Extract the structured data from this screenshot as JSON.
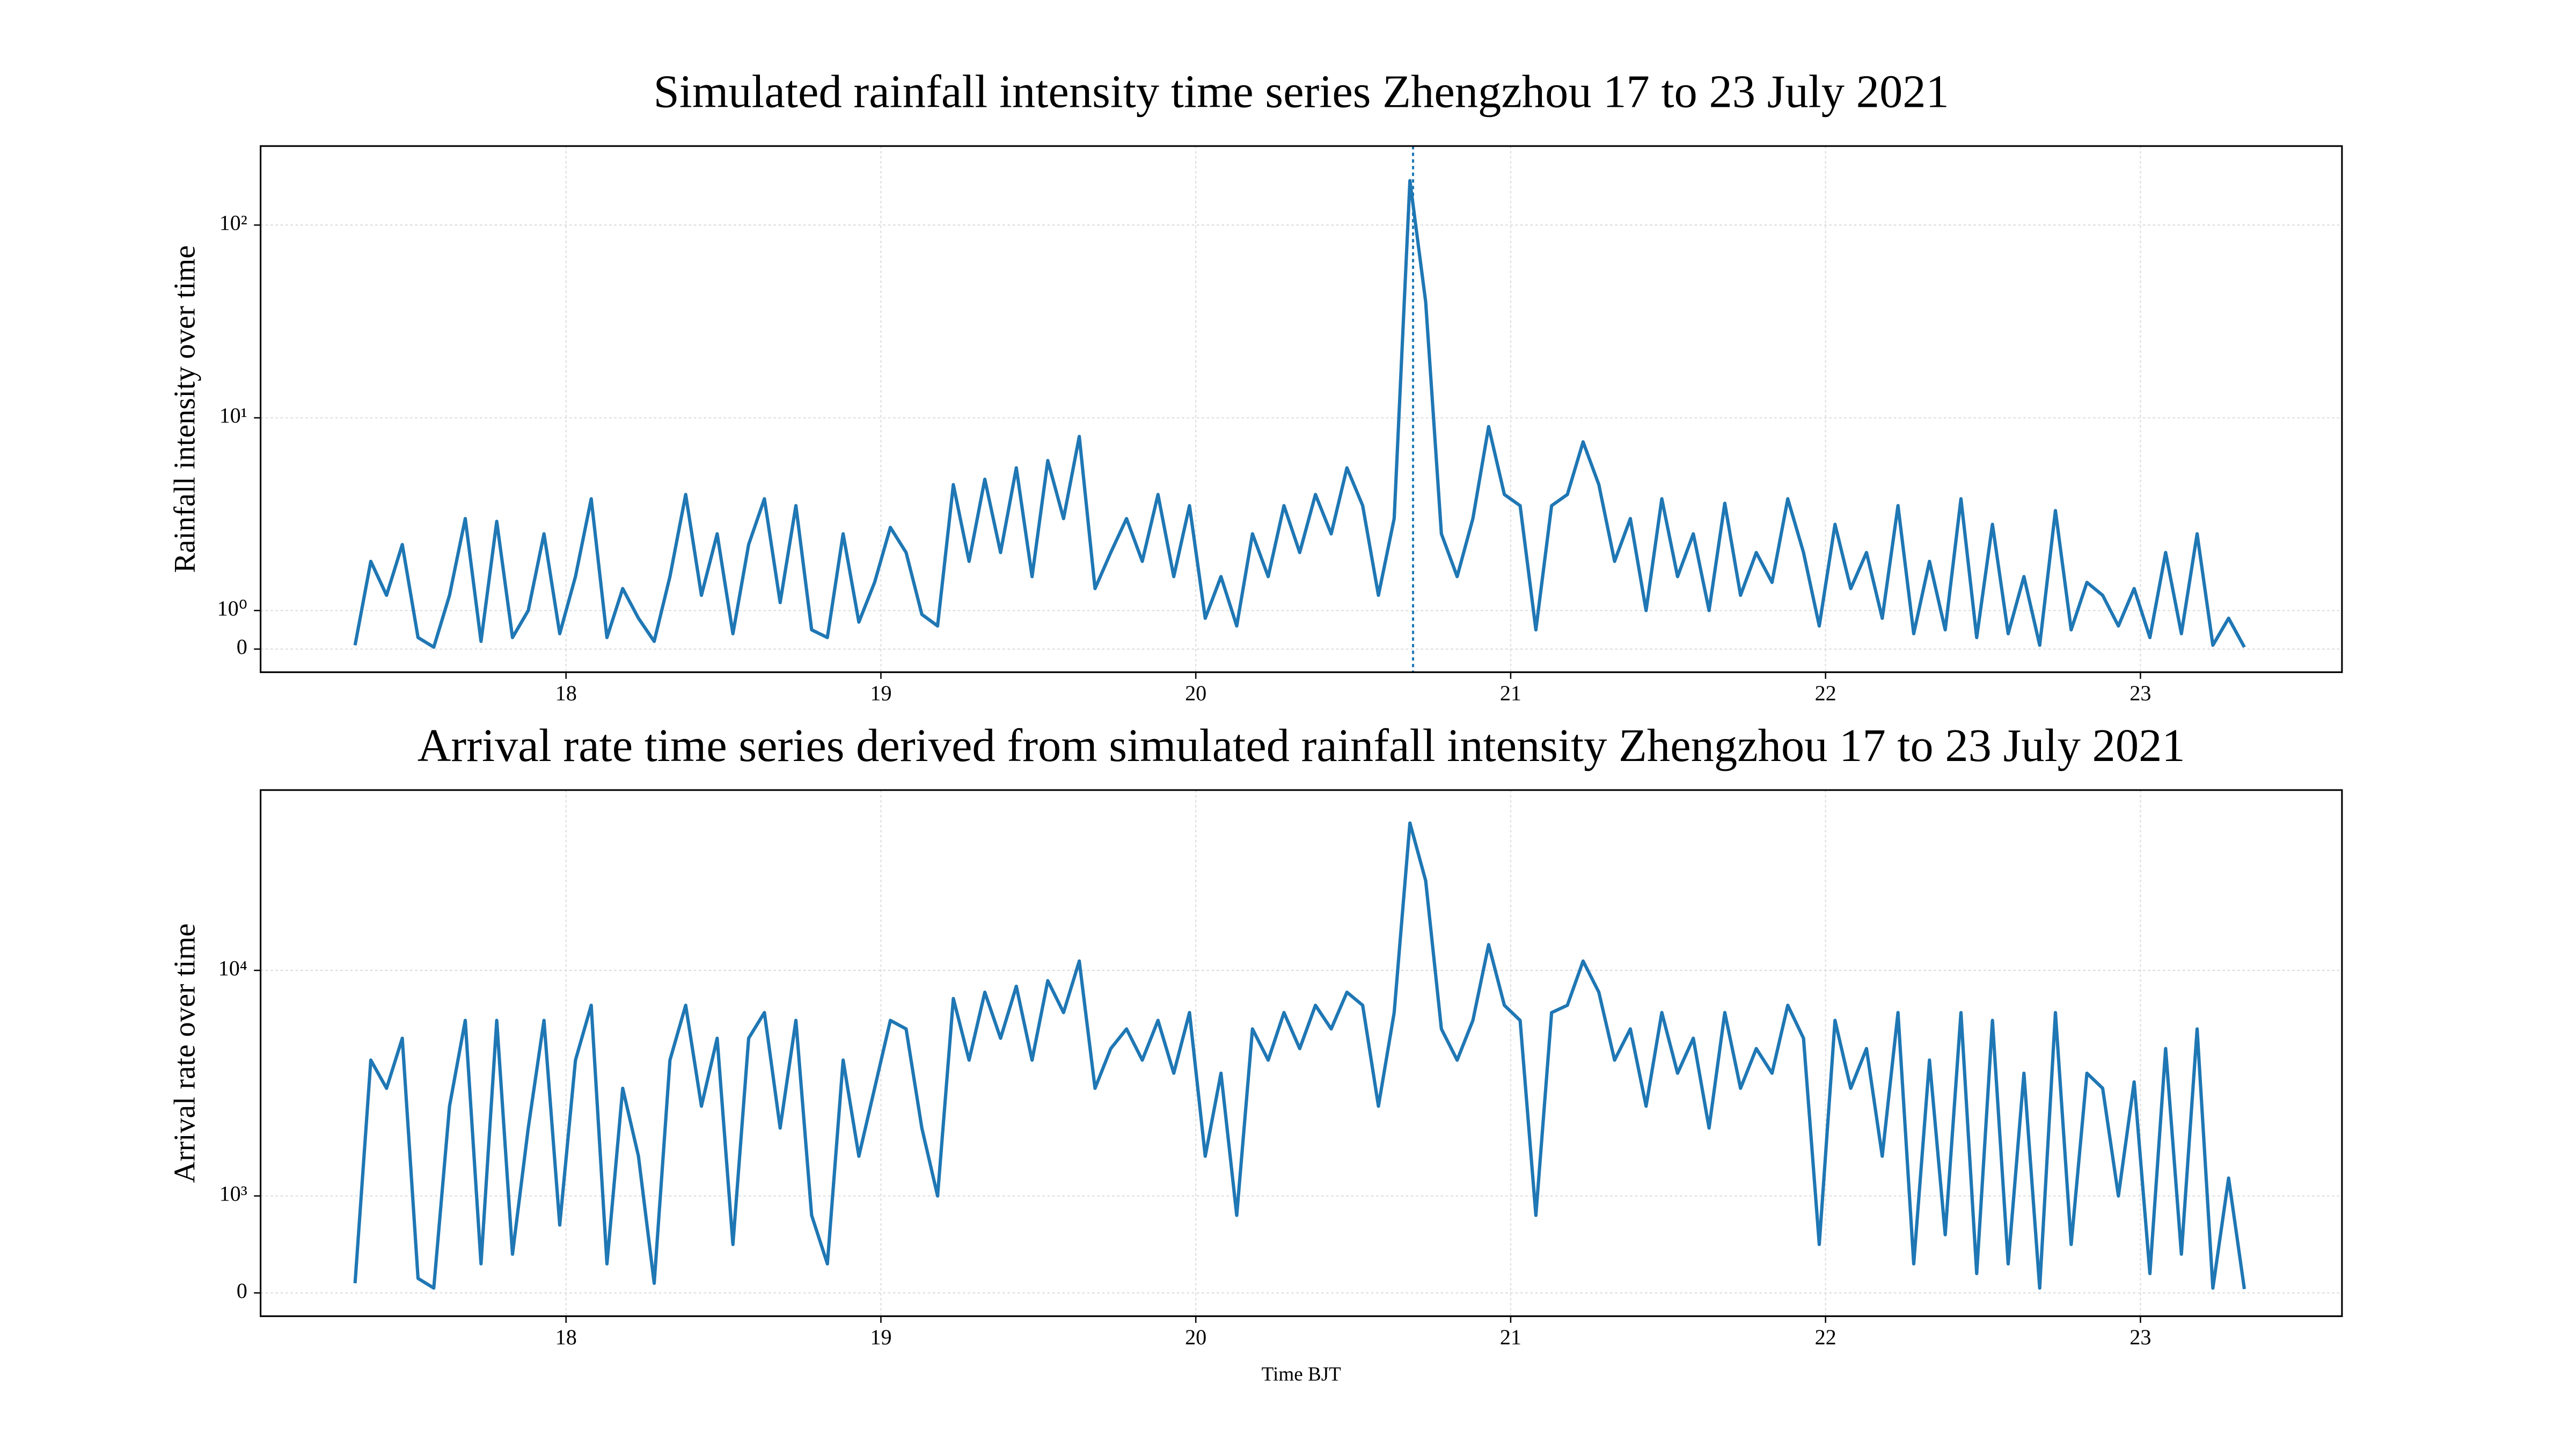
{
  "chart_data": [
    {
      "type": "line",
      "title": "Simulated rainfall intensity time series Zhengzhou 17 to 23 July 2021",
      "ylabel": "Rainfall intensity over time",
      "color": "#1f77b4",
      "grid": true,
      "yscale": "symlog",
      "linthresh": 1,
      "linscale": 0.2,
      "xlim": [
        17.03,
        23.64
      ],
      "xticks": [
        18,
        19,
        20,
        21,
        22,
        23
      ],
      "ylim": [
        -0.6,
        257
      ],
      "yticks": [
        0,
        {
          "value": 1,
          "label": "10⁰"
        },
        {
          "value": 10,
          "label": "10¹"
        },
        {
          "value": 100,
          "label": "10²"
        }
      ],
      "vline": 20.69,
      "x": [
        17.33,
        17.38,
        17.43,
        17.48,
        17.53,
        17.58,
        17.63,
        17.68,
        17.73,
        17.78,
        17.83,
        17.88,
        17.93,
        17.98,
        18.03,
        18.08,
        18.13,
        18.18,
        18.23,
        18.28,
        18.33,
        18.38,
        18.43,
        18.48,
        18.53,
        18.58,
        18.63,
        18.68,
        18.73,
        18.78,
        18.83,
        18.88,
        18.93,
        18.98,
        19.03,
        19.08,
        19.13,
        19.18,
        19.23,
        19.28,
        19.33,
        19.38,
        19.43,
        19.48,
        19.53,
        19.58,
        19.63,
        19.68,
        19.73,
        19.78,
        19.83,
        19.88,
        19.93,
        19.98,
        20.03,
        20.08,
        20.13,
        20.18,
        20.23,
        20.28,
        20.33,
        20.38,
        20.43,
        20.48,
        20.53,
        20.58,
        20.63,
        20.68,
        20.73,
        20.78,
        20.83,
        20.88,
        20.93,
        20.98,
        21.03,
        21.08,
        21.13,
        21.18,
        21.23,
        21.28,
        21.33,
        21.38,
        21.43,
        21.48,
        21.53,
        21.58,
        21.63,
        21.68,
        21.73,
        21.78,
        21.83,
        21.88,
        21.93,
        21.98,
        22.03,
        22.08,
        22.13,
        22.18,
        22.23,
        22.28,
        22.33,
        22.38,
        22.43,
        22.48,
        22.53,
        22.58,
        22.63,
        22.68,
        22.73,
        22.78,
        22.83,
        22.88,
        22.93,
        22.98,
        23.03,
        23.08,
        23.13,
        23.18,
        23.23,
        23.28,
        23.33
      ],
      "values": [
        0.1,
        1.8,
        1.2,
        2.2,
        0.3,
        0.05,
        1.2,
        3.0,
        0.2,
        2.9,
        0.3,
        1.0,
        2.5,
        0.4,
        1.5,
        3.8,
        0.3,
        1.3,
        0.8,
        0.2,
        1.5,
        4.0,
        1.2,
        2.5,
        0.4,
        2.2,
        3.8,
        1.1,
        3.5,
        0.5,
        0.3,
        2.5,
        0.7,
        1.4,
        2.7,
        2.0,
        0.9,
        0.6,
        4.5,
        1.8,
        4.8,
        2.0,
        5.5,
        1.5,
        6.0,
        3.0,
        8.0,
        1.3,
        2.0,
        3.0,
        1.8,
        4.0,
        1.5,
        3.5,
        0.8,
        1.5,
        0.6,
        2.5,
        1.5,
        3.5,
        2.0,
        4.0,
        2.5,
        5.5,
        3.5,
        1.2,
        3.0,
        170,
        40,
        2.5,
        1.5,
        3.0,
        9.0,
        4.0,
        3.5,
        0.5,
        3.5,
        4.0,
        7.5,
        4.5,
        1.8,
        3.0,
        1.0,
        3.8,
        1.5,
        2.5,
        1.0,
        3.6,
        1.2,
        2.0,
        1.4,
        3.8,
        2.0,
        0.6,
        2.8,
        1.3,
        2.0,
        0.8,
        3.5,
        0.4,
        1.8,
        0.5,
        3.8,
        0.3,
        2.8,
        0.4,
        1.5,
        0.1,
        3.3,
        0.5,
        1.4,
        1.2,
        0.6,
        1.3,
        0.3,
        2.0,
        0.4,
        2.5,
        0.1,
        0.8,
        0.05
      ]
    },
    {
      "type": "line",
      "title": "Arrival rate time series derived from simulated rainfall intensity Zhengzhou 17 to 23 July 2021",
      "ylabel": "Arrival rate over time",
      "xlabel": "Time BJT",
      "color": "#1f77b4",
      "grid": true,
      "yscale": "symlog",
      "linthresh": 1000,
      "linscale": 0.43,
      "xlim": [
        17.03,
        23.64
      ],
      "xticks": [
        18,
        19,
        20,
        21,
        22,
        23
      ],
      "ylim": [
        -240,
        63000
      ],
      "yticks": [
        0,
        {
          "value": 1000,
          "label": "10³"
        },
        {
          "value": 10000,
          "label": "10⁴"
        }
      ],
      "x": [
        17.33,
        17.38,
        17.43,
        17.48,
        17.53,
        17.58,
        17.63,
        17.68,
        17.73,
        17.78,
        17.83,
        17.88,
        17.93,
        17.98,
        18.03,
        18.08,
        18.13,
        18.18,
        18.23,
        18.28,
        18.33,
        18.38,
        18.43,
        18.48,
        18.53,
        18.58,
        18.63,
        18.68,
        18.73,
        18.78,
        18.83,
        18.88,
        18.93,
        18.98,
        19.03,
        19.08,
        19.13,
        19.18,
        19.23,
        19.28,
        19.33,
        19.38,
        19.43,
        19.48,
        19.53,
        19.58,
        19.63,
        19.68,
        19.73,
        19.78,
        19.83,
        19.88,
        19.93,
        19.98,
        20.03,
        20.08,
        20.13,
        20.18,
        20.23,
        20.28,
        20.33,
        20.38,
        20.43,
        20.48,
        20.53,
        20.58,
        20.63,
        20.68,
        20.73,
        20.78,
        20.83,
        20.88,
        20.93,
        20.98,
        21.03,
        21.08,
        21.13,
        21.18,
        21.23,
        21.28,
        21.33,
        21.38,
        21.43,
        21.48,
        21.53,
        21.58,
        21.63,
        21.68,
        21.73,
        21.78,
        21.83,
        21.88,
        21.93,
        21.98,
        22.03,
        22.08,
        22.13,
        22.18,
        22.23,
        22.28,
        22.33,
        22.38,
        22.43,
        22.48,
        22.53,
        22.58,
        22.63,
        22.68,
        22.73,
        22.78,
        22.83,
        22.88,
        22.93,
        22.98,
        23.03,
        23.08,
        23.13,
        23.18,
        23.23,
        23.28,
        23.33
      ],
      "values": [
        100,
        4000,
        3000,
        5000,
        150,
        50,
        2500,
        6000,
        300,
        6000,
        400,
        2000,
        6000,
        700,
        4000,
        7000,
        300,
        3000,
        1500,
        100,
        4000,
        7000,
        2500,
        5000,
        500,
        5000,
        6500,
        2000,
        6000,
        800,
        300,
        4000,
        1500,
        3000,
        6000,
        5500,
        2000,
        1000,
        7500,
        4000,
        8000,
        5000,
        8500,
        4000,
        9000,
        6500,
        11000,
        3000,
        4500,
        5500,
        4000,
        6000,
        3500,
        6500,
        1500,
        3500,
        800,
        5500,
        4000,
        6500,
        4500,
        7000,
        5500,
        8000,
        7000,
        2500,
        6500,
        45000,
        25000,
        5500,
        4000,
        6000,
        13000,
        7000,
        6000,
        800,
        6500,
        7000,
        11000,
        8000,
        4000,
        5500,
        2500,
        6500,
        3500,
        5000,
        2000,
        6500,
        3000,
        4500,
        3500,
        7000,
        5000,
        500,
        6000,
        3000,
        4500,
        1500,
        6500,
        300,
        4000,
        600,
        6500,
        200,
        6000,
        300,
        3500,
        50,
        6500,
        500,
        3500,
        3000,
        1000,
        3200,
        200,
        4500,
        400,
        5500,
        50,
        1200,
        40
      ]
    }
  ]
}
